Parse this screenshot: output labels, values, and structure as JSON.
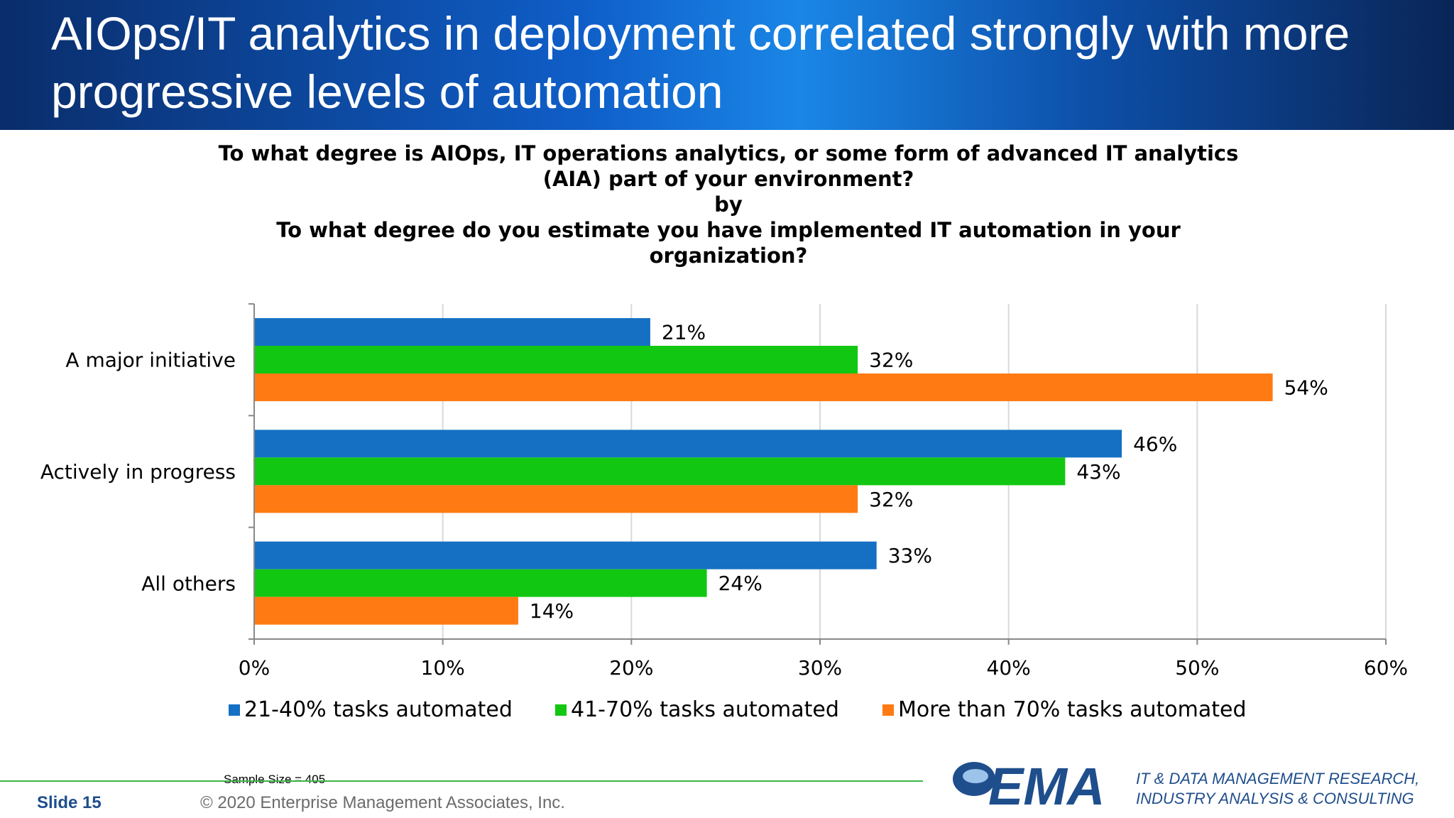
{
  "title": "AIOps/IT analytics in deployment correlated strongly with more progressive levels of automation",
  "question": {
    "line1": "To what degree is AIOps, IT operations analytics, or some form of advanced IT analytics",
    "line2": "(AIA) part of your environment?",
    "line3": "by",
    "line4": "To what degree do you estimate you have implemented IT automation in your",
    "line5": "organization?"
  },
  "chart_data": {
    "type": "bar",
    "orientation": "horizontal",
    "categories": [
      "A major initiative",
      "Actively in progress",
      "All others"
    ],
    "series": [
      {
        "name": "21-40% tasks automated",
        "color": "#1570c4",
        "values": [
          21,
          46,
          33
        ],
        "labels": [
          "21%",
          "46%",
          "33%"
        ]
      },
      {
        "name": "41-70% tasks automated",
        "color": "#12c712",
        "values": [
          32,
          43,
          24
        ],
        "labels": [
          "32%",
          "43%",
          "24%"
        ]
      },
      {
        "name": "More than 70% tasks automated",
        "color": "#ff7a12",
        "values": [
          54,
          32,
          14
        ],
        "labels": [
          "54%",
          "32%",
          "14%"
        ]
      }
    ],
    "xlim": [
      0,
      60
    ],
    "xticks": [
      "0%",
      "10%",
      "20%",
      "30%",
      "40%",
      "50%",
      "60%"
    ],
    "grid": true,
    "legend_position": "bottom"
  },
  "footer": {
    "sample_size": "Sample Size = 405",
    "slide_label": "Slide  15",
    "copyright": "© 2020 Enterprise Management Associates, Inc.",
    "logo_text": "EMA",
    "tagline_line1": "IT & DATA MANAGEMENT RESEARCH,",
    "tagline_line2": "INDUSTRY ANALYSIS & CONSULTING"
  }
}
